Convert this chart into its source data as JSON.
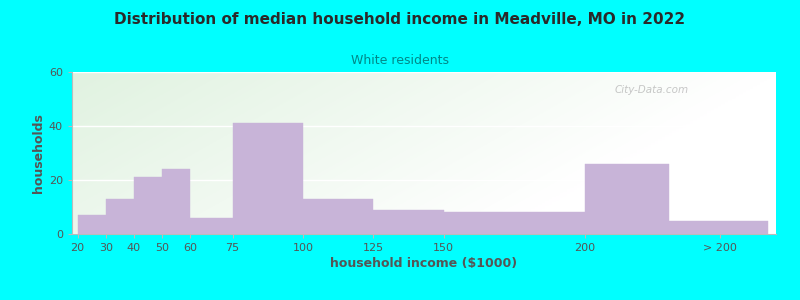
{
  "title": "Distribution of median household income in Meadville, MO in 2022",
  "subtitle": "White residents",
  "xlabel": "household income ($1000)",
  "ylabel": "households",
  "background_color": "#00FFFF",
  "bar_color": "#C8B4D8",
  "title_color": "#2a2a2a",
  "subtitle_color": "#008888",
  "axis_label_color": "#555555",
  "tick_label_color": "#555555",
  "ylim": [
    0,
    60
  ],
  "yticks": [
    0,
    20,
    40,
    60
  ],
  "values": [
    7,
    13,
    21,
    24,
    6,
    41,
    13,
    9,
    8,
    26,
    5
  ],
  "bar_left_edges": [
    20,
    30,
    40,
    50,
    60,
    75,
    100,
    125,
    150,
    200,
    230
  ],
  "bar_right_edges": [
    30,
    40,
    50,
    60,
    75,
    100,
    125,
    150,
    200,
    230,
    265
  ],
  "tick_positions": [
    20,
    30,
    40,
    50,
    60,
    75,
    100,
    125,
    150,
    200,
    248
  ],
  "tick_labels": [
    "20",
    "30",
    "40",
    "50",
    "60",
    "75",
    "100",
    "125",
    "150",
    "200",
    "> 200"
  ],
  "xlim": [
    18,
    268
  ],
  "watermark": "City-Data.com"
}
